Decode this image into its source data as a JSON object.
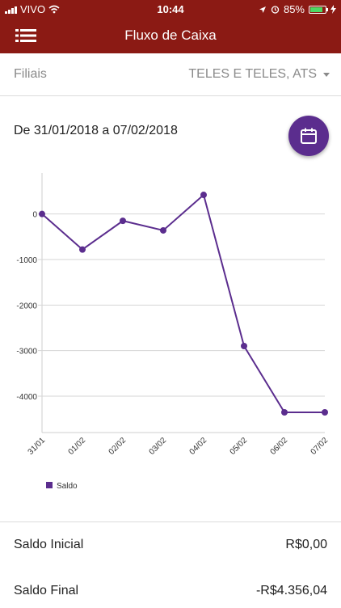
{
  "status_bar": {
    "carrier": "VIVO",
    "time": "10:44",
    "battery": "85%",
    "battery_level": 0.85
  },
  "app_bar": {
    "title": "Fluxo de Caixa",
    "menu_icon": "list-menu-icon"
  },
  "filter": {
    "label": "Filiais",
    "value": "TELES E TELES, ATS"
  },
  "date_range": "De 31/01/2018 a 07/02/2018",
  "calendar_icon": "calendar-icon",
  "colors": {
    "app_bar": "#8b1a14",
    "accent": "#5b2d8e"
  },
  "chart_data": {
    "type": "line",
    "categories": [
      "31/01",
      "01/02",
      "02/02",
      "03/02",
      "04/02",
      "05/02",
      "06/02",
      "07/02"
    ],
    "series": [
      {
        "name": "Saldo",
        "values": [
          0,
          -780,
          -150,
          -360,
          420,
          -2900,
          -4356.04,
          -4356.04
        ],
        "color": "#5b2d8e"
      }
    ],
    "y_ticks": [
      0,
      -1000,
      -2000,
      -3000,
      -4000
    ],
    "ylim": [
      -4800,
      900
    ],
    "grid": true,
    "legend": "bottom-left"
  },
  "summary": {
    "saldo_inicial_label": "Saldo Inicial",
    "saldo_inicial_value": "R$0,00",
    "saldo_final_label": "Saldo Final",
    "saldo_final_value": "-R$4.356,04"
  }
}
